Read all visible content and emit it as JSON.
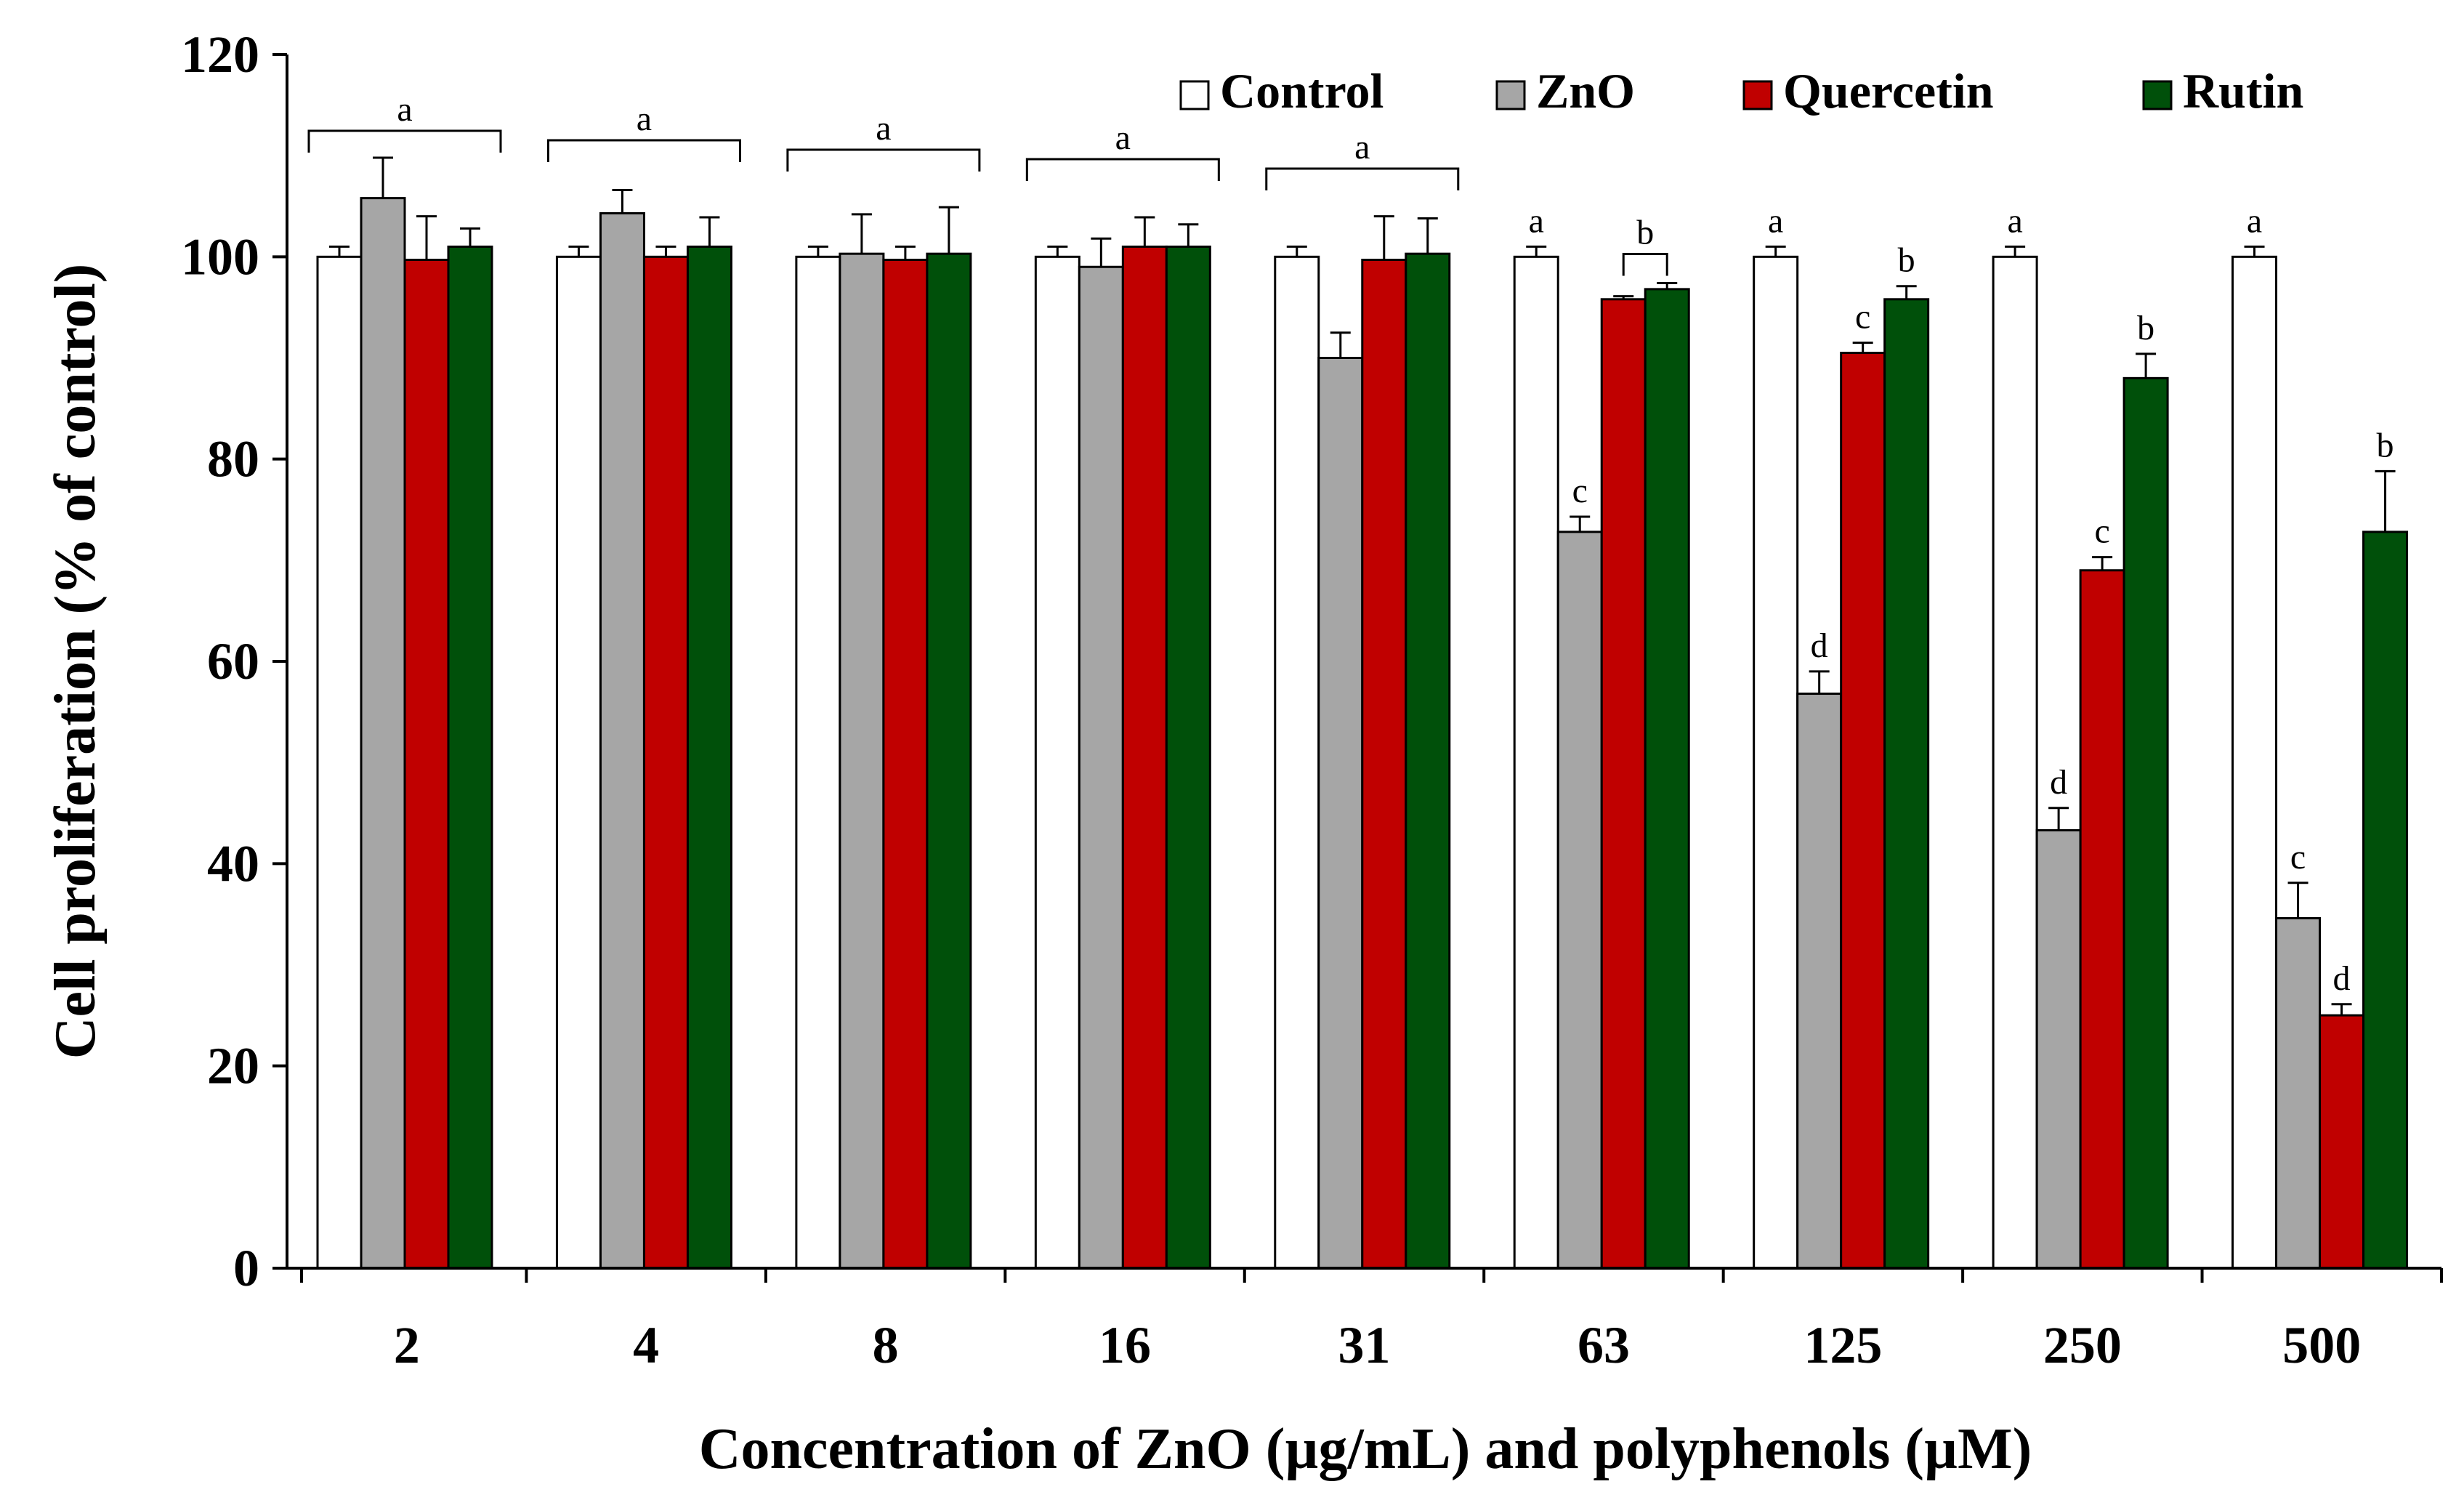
{
  "chart_data": {
    "type": "bar",
    "xlabel": "Concentration of ZnO (µg/mL) and polyphenols (µM)",
    "ylabel": "Cell proliferation (% of control)",
    "ylim": [
      0,
      120
    ],
    "yticks": [
      0,
      20,
      40,
      60,
      80,
      100,
      120
    ],
    "categories": [
      "2",
      "4",
      "8",
      "16",
      "31",
      "63",
      "125",
      "250",
      "500"
    ],
    "legend_position": "top-right",
    "series": [
      {
        "name": "Control",
        "color": "#ffffff",
        "values": [
          100,
          100,
          100,
          100,
          100,
          100,
          100,
          100,
          100
        ],
        "errors": [
          1,
          1,
          1,
          1,
          1,
          1,
          1,
          1,
          1
        ]
      },
      {
        "name": "ZnO",
        "color": "#a6a6a6",
        "values": [
          105.8,
          104.3,
          100.3,
          99,
          90,
          72.8,
          56.8,
          43.3,
          34.6
        ],
        "errors": [
          4,
          2.3,
          3.9,
          2.8,
          2.5,
          1.5,
          2.2,
          2.2,
          3.5
        ]
      },
      {
        "name": "Quercetin",
        "color": "#c00000",
        "values": [
          99.7,
          100,
          99.7,
          101,
          99.7,
          95.8,
          90.5,
          69,
          25
        ],
        "errors": [
          4.3,
          1,
          1.3,
          2.9,
          4.3,
          0.3,
          1,
          1.3,
          1.1
        ]
      },
      {
        "name": "Rutin",
        "color": "#00500a",
        "values": [
          101,
          101,
          100.3,
          101,
          100.3,
          96.8,
          95.8,
          88,
          72.8
        ],
        "errors": [
          1.8,
          2.9,
          4.6,
          2.2,
          3.5,
          0.6,
          1.3,
          2.4,
          6
        ]
      }
    ],
    "annotations": [
      {
        "letter": "a",
        "category": "2",
        "type": "bracket",
        "from_series": 0,
        "to_series": 3
      },
      {
        "letter": "a",
        "category": "4",
        "type": "bracket",
        "from_series": 0,
        "to_series": 3
      },
      {
        "letter": "a",
        "category": "8",
        "type": "bracket",
        "from_series": 0,
        "to_series": 3
      },
      {
        "letter": "a",
        "category": "16",
        "type": "bracket",
        "from_series": 0,
        "to_series": 3
      },
      {
        "letter": "a",
        "category": "31",
        "type": "bracket",
        "from_series": 0,
        "to_series": 3
      },
      {
        "letter": "a",
        "category": "63",
        "series": 0
      },
      {
        "letter": "c",
        "category": "63",
        "series": 1
      },
      {
        "letter": "b",
        "category": "63",
        "type": "bracket",
        "from_series": 2,
        "to_series": 3
      },
      {
        "letter": "a",
        "category": "125",
        "series": 0
      },
      {
        "letter": "d",
        "category": "125",
        "series": 1
      },
      {
        "letter": "c",
        "category": "125",
        "series": 2
      },
      {
        "letter": "b",
        "category": "125",
        "series": 3
      },
      {
        "letter": "a",
        "category": "250",
        "series": 0
      },
      {
        "letter": "d",
        "category": "250",
        "series": 1
      },
      {
        "letter": "c",
        "category": "250",
        "series": 2
      },
      {
        "letter": "b",
        "category": "250",
        "series": 3
      },
      {
        "letter": "a",
        "category": "500",
        "series": 0
      },
      {
        "letter": "c",
        "category": "500",
        "series": 1
      },
      {
        "letter": "d",
        "category": "500",
        "series": 2
      },
      {
        "letter": "b",
        "category": "500",
        "series": 3
      }
    ]
  }
}
